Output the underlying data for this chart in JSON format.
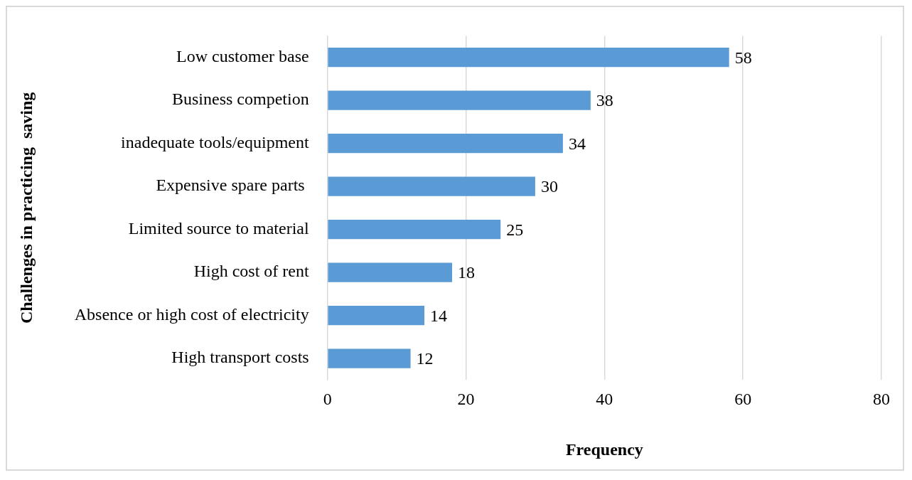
{
  "chart_data": {
    "type": "bar",
    "orientation": "horizontal",
    "xlabel": "Frequency",
    "ylabel": "Challenges in practicing  saving",
    "categories": [
      "Low customer base",
      "Business competion",
      "inadequate tools/equipment",
      "Expensive spare parts ",
      "Limited source to material",
      "High cost of rent",
      "Absence or high cost of electricity",
      "High transport costs"
    ],
    "values": [
      58,
      38,
      34,
      30,
      25,
      18,
      14,
      12
    ],
    "color": "#5b9bd5",
    "xlim": [
      0,
      80
    ],
    "xticks": [
      0,
      20,
      40,
      60,
      80
    ],
    "grid": "x",
    "data_labels": true,
    "legend": false
  }
}
